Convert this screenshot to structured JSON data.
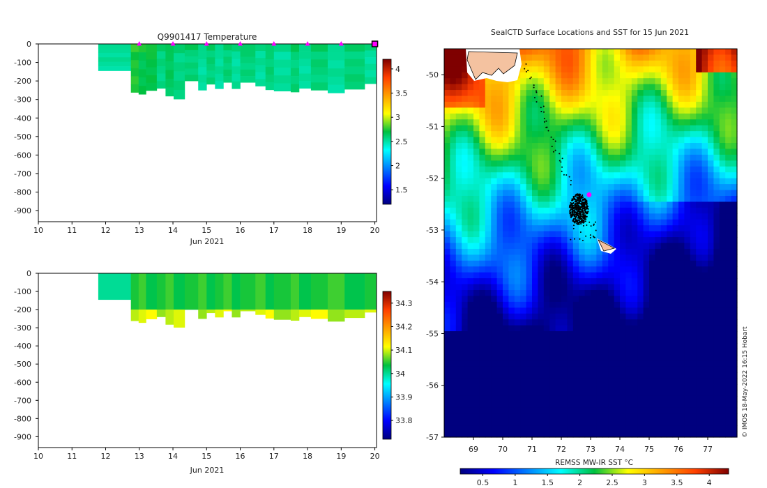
{
  "chart_data": [
    {
      "type": "heatmap",
      "title": "Q9901417  Temperature",
      "xlabel": "Jun 2021",
      "ylabel": "",
      "x_ticks": [
        10,
        11,
        12,
        13,
        14,
        15,
        16,
        17,
        18,
        19,
        20
      ],
      "x_range": [
        10,
        20.05
      ],
      "y_ticks": [
        0,
        -100,
        -200,
        -300,
        -400,
        -500,
        -600,
        -700,
        -800,
        -900
      ],
      "y_range": [
        0,
        -960
      ],
      "colorbar_ticks": [
        4,
        3.5,
        3,
        2.5,
        2,
        1.5
      ],
      "colorbar_range": [
        1.2,
        4.2
      ],
      "profile_markers_x": [
        13,
        14,
        15,
        16,
        17,
        18,
        19,
        20
      ],
      "profiles": [
        {
          "t0": 11.78,
          "t1": 12.75,
          "depth": 145,
          "value": 2.55
        },
        {
          "t0": 12.75,
          "t1": 12.98,
          "depth": 262,
          "value": 2.7
        },
        {
          "t0": 12.98,
          "t1": 13.2,
          "depth": 272,
          "value": 2.7
        },
        {
          "t0": 13.2,
          "t1": 13.52,
          "depth": 252,
          "value": 2.65
        },
        {
          "t0": 13.52,
          "t1": 13.78,
          "depth": 240,
          "value": 2.6
        },
        {
          "t0": 13.78,
          "t1": 14.02,
          "depth": 282,
          "value": 2.6
        },
        {
          "t0": 14.02,
          "t1": 14.35,
          "depth": 298,
          "value": 2.6
        },
        {
          "t0": 14.35,
          "t1": 14.75,
          "depth": 200,
          "value": 2.55
        },
        {
          "t0": 14.75,
          "t1": 15.0,
          "depth": 250,
          "value": 2.55
        },
        {
          "t0": 15.0,
          "t1": 15.25,
          "depth": 218,
          "value": 2.55
        },
        {
          "t0": 15.25,
          "t1": 15.5,
          "depth": 242,
          "value": 2.55
        },
        {
          "t0": 15.5,
          "t1": 15.75,
          "depth": 208,
          "value": 2.55
        },
        {
          "t0": 15.75,
          "t1": 16.0,
          "depth": 242,
          "value": 2.55
        },
        {
          "t0": 16.0,
          "t1": 16.45,
          "depth": 208,
          "value": 2.55
        },
        {
          "t0": 16.45,
          "t1": 16.75,
          "depth": 228,
          "value": 2.55
        },
        {
          "t0": 16.75,
          "t1": 17.0,
          "depth": 248,
          "value": 2.55
        },
        {
          "t0": 17.0,
          "t1": 17.5,
          "depth": 255,
          "value": 2.55
        },
        {
          "t0": 17.5,
          "t1": 17.75,
          "depth": 260,
          "value": 2.55
        },
        {
          "t0": 17.75,
          "t1": 18.1,
          "depth": 240,
          "value": 2.55
        },
        {
          "t0": 18.1,
          "t1": 18.6,
          "depth": 250,
          "value": 2.55
        },
        {
          "t0": 18.6,
          "t1": 19.1,
          "depth": 265,
          "value": 2.55
        },
        {
          "t0": 19.1,
          "t1": 19.7,
          "depth": 245,
          "value": 2.55
        },
        {
          "t0": 19.7,
          "t1": 20.05,
          "depth": 215,
          "value": 2.55
        }
      ]
    },
    {
      "type": "heatmap",
      "title": "",
      "xlabel": "Jun 2021",
      "ylabel": "",
      "x_ticks": [
        10,
        11,
        12,
        13,
        14,
        15,
        16,
        17,
        18,
        19,
        20
      ],
      "x_range": [
        10,
        20.05
      ],
      "y_ticks": [
        0,
        -100,
        -200,
        -300,
        -400,
        -500,
        -600,
        -700,
        -800,
        -900
      ],
      "y_range": [
        0,
        -960
      ],
      "colorbar_ticks": [
        34.3,
        34.2,
        34.1,
        34,
        33.9,
        33.8
      ],
      "colorbar_range": [
        33.72,
        34.35
      ],
      "deep_layer_value": 34.08,
      "upper_value": 34.03
    },
    {
      "type": "heatmap",
      "title": "SealCTD Surface Locations and SST for 15 Jun 2021",
      "xlabel": "REMSS MW-IR SST °C",
      "ylabel": "",
      "x_ticks": [
        69,
        70,
        71,
        72,
        73,
        74,
        75,
        76,
        77
      ],
      "x_range": [
        68.0,
        78.0
      ],
      "y_ticks": [
        -50,
        -51,
        -52,
        -53,
        -54,
        -55,
        -56,
        -57
      ],
      "y_range": [
        -49.5,
        -57.0
      ],
      "colorbar_ticks": [
        0.5,
        1,
        1.5,
        2,
        2.5,
        3,
        3.5,
        4
      ],
      "colorbar_range": [
        0.15,
        4.3
      ],
      "current_position": {
        "lon": 72.95,
        "lat": -52.32
      },
      "credit": "© IMOS 18-May-2022 16:15 Hobart"
    }
  ]
}
